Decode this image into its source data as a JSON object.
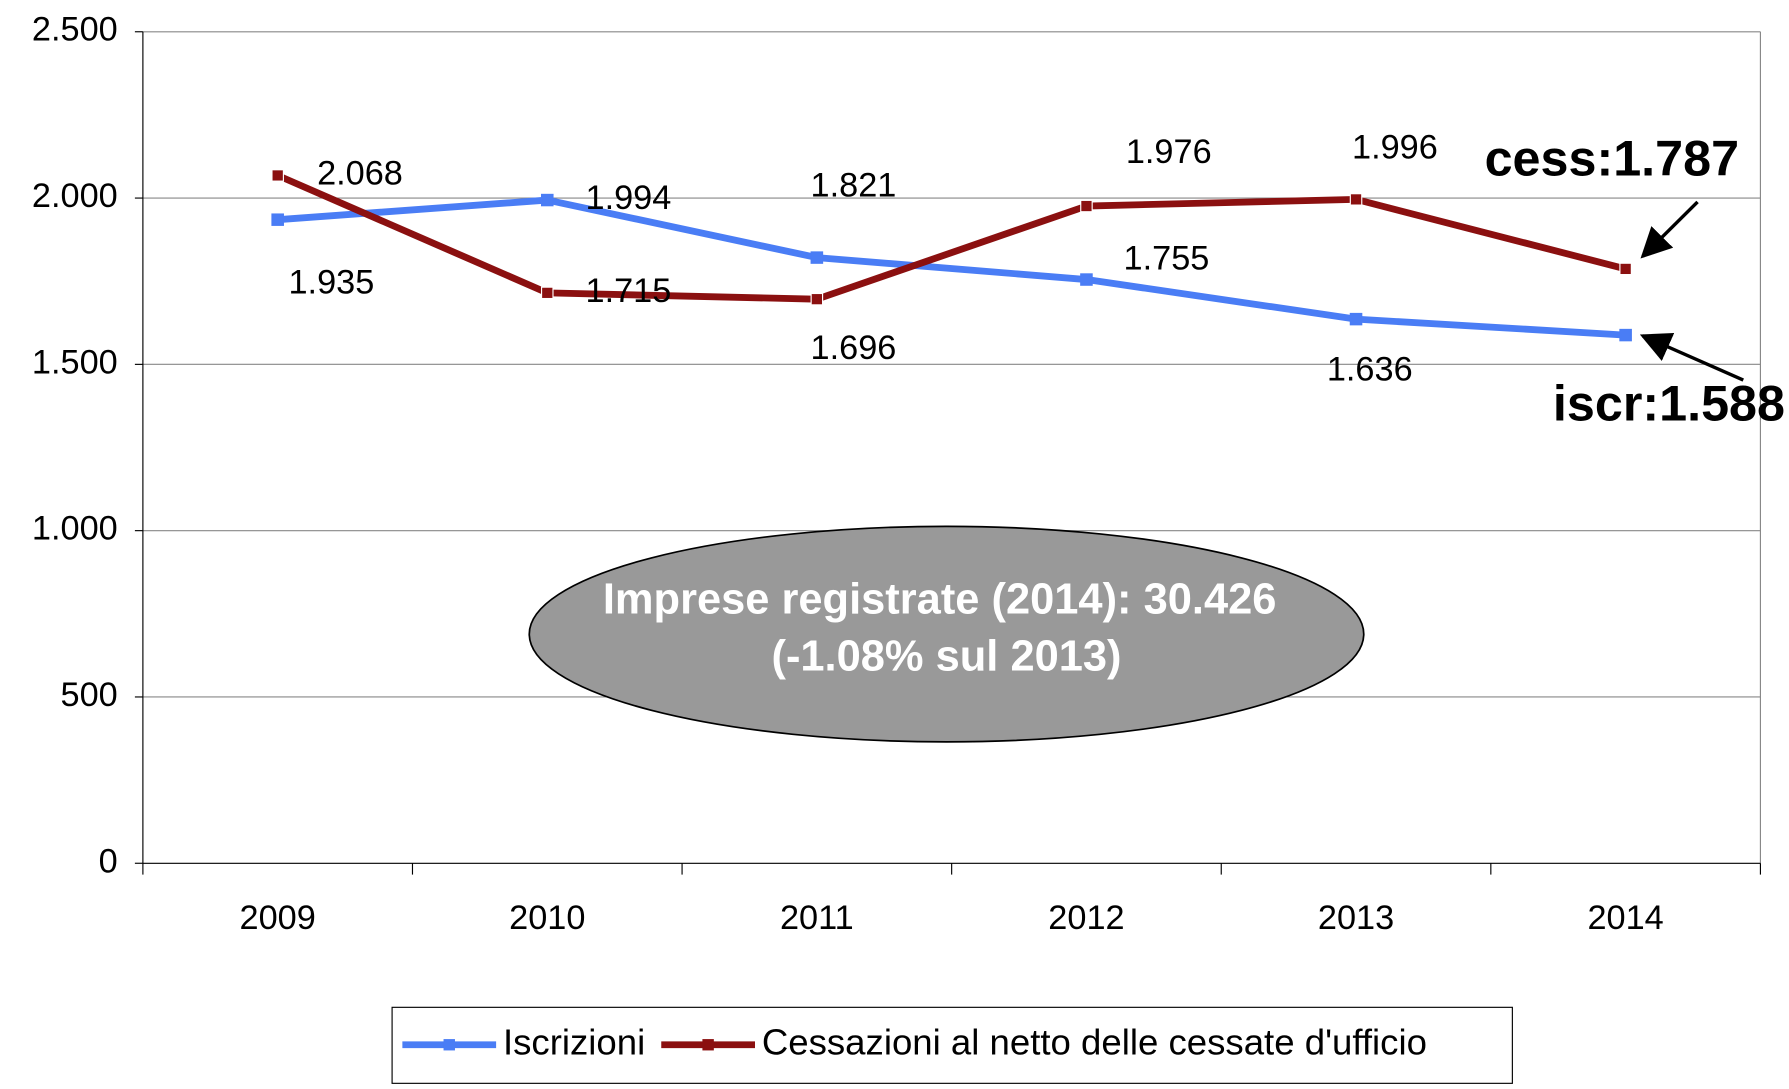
{
  "chart_data": {
    "type": "line",
    "categories": [
      "2009",
      "2010",
      "2011",
      "2012",
      "2013",
      "2014"
    ],
    "series": [
      {
        "name": "Iscrizioni",
        "color": "#4a7df5",
        "values": [
          1935,
          1994,
          1821,
          1755,
          1636,
          1588
        ],
        "value_labels": [
          "1.935",
          "1.994",
          "1.821",
          "1.755",
          "1.636",
          null
        ]
      },
      {
        "name": "Cessazioni al netto delle cessate d'ufficio",
        "color": "#8b1010",
        "values": [
          2068,
          1715,
          1696,
          1976,
          1996,
          1787
        ],
        "value_labels": [
          "2.068",
          "1.715",
          "1.696",
          "1.976",
          "1.996",
          null
        ]
      }
    ],
    "ylim": [
      0,
      2500
    ],
    "yticks": [
      0,
      500,
      {
        "value": 1000,
        "label": "1.000"
      },
      {
        "value": 1500,
        "label": "1.500"
      },
      {
        "value": 2000,
        "label": "2.000"
      },
      {
        "value": 2500,
        "label": "2.500"
      }
    ],
    "grid": true,
    "legend": "bottom",
    "annotations": [
      "cess:1.787",
      "iscr:1.588",
      "Imprese registrate (2014): 30.426",
      "(-1.08% sul 2013)"
    ]
  }
}
